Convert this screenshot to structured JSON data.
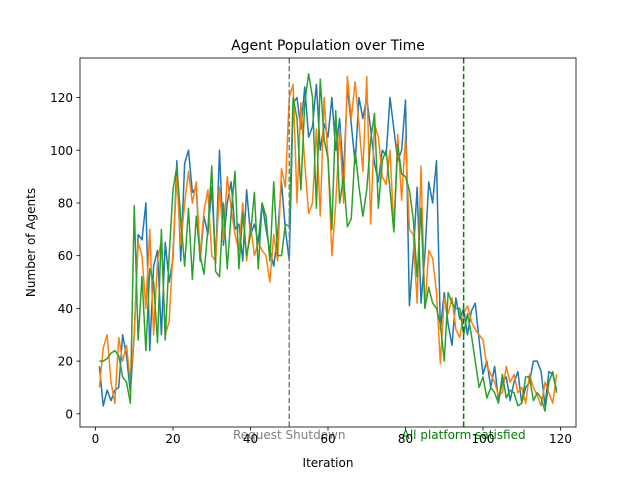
{
  "chart_data": {
    "type": "line",
    "title": "Agent Population over Time",
    "xlabel": "Iteration",
    "ylabel": "Number of Agents",
    "xlim": [
      -4,
      124
    ],
    "ylim": [
      -5,
      135
    ],
    "x_ticks": [
      0,
      20,
      40,
      60,
      80,
      100,
      120
    ],
    "y_ticks": [
      0,
      20,
      40,
      60,
      80,
      100,
      120
    ],
    "grid": false,
    "legend": "none",
    "x": [
      1,
      2,
      3,
      4,
      5,
      6,
      7,
      8,
      9,
      10,
      11,
      12,
      13,
      14,
      15,
      16,
      17,
      18,
      19,
      20,
      21,
      22,
      23,
      24,
      25,
      26,
      27,
      28,
      29,
      30,
      31,
      32,
      33,
      34,
      35,
      36,
      37,
      38,
      39,
      40,
      41,
      42,
      43,
      44,
      45,
      46,
      47,
      48,
      49,
      50,
      51,
      52,
      53,
      54,
      55,
      56,
      57,
      58,
      59,
      60,
      61,
      62,
      63,
      64,
      65,
      66,
      67,
      68,
      69,
      70,
      71,
      72,
      73,
      74,
      75,
      76,
      77,
      78,
      79,
      80,
      81,
      82,
      83,
      84,
      85,
      86,
      87,
      88,
      89,
      90,
      91,
      92,
      93,
      94,
      95,
      96,
      97,
      98,
      99,
      100,
      101,
      102,
      103,
      104,
      105,
      106,
      107,
      108,
      109,
      110,
      111,
      112,
      113,
      114,
      115,
      116,
      117,
      118,
      119
    ],
    "series": [
      {
        "color": "#1f77b4",
        "values": [
          18,
          3,
          9,
          5,
          9,
          10,
          30,
          22,
          8,
          30,
          68,
          66,
          80,
          24,
          56,
          62,
          30,
          65,
          50,
          59,
          96,
          58,
          95,
          100,
          84,
          86,
          58,
          75,
          68,
          86,
          57,
          100,
          64,
          80,
          88,
          70,
          72,
          58,
          85,
          68,
          72,
          65,
          80,
          70,
          62,
          56,
          68,
          88,
          70,
          58,
          118,
          120,
          108,
          124,
          105,
          109,
          125,
          100,
          110,
          105,
          120,
          100,
          112,
          90,
          124,
          110,
          95,
          120,
          112,
          120,
          108,
          95,
          88,
          100,
          98,
          120,
          108,
          96,
          100,
          119,
          41,
          60,
          86,
          42,
          60,
          88,
          80,
          96,
          32,
          46,
          34,
          26,
          44,
          36,
          40,
          30,
          39,
          42,
          28,
          15,
          20,
          10,
          18,
          5,
          12,
          14,
          5,
          12,
          16,
          4,
          10,
          12,
          20,
          20,
          16,
          3,
          16,
          15,
          9
        ]
      },
      {
        "color": "#ff7f0e",
        "values": [
          10,
          25,
          30,
          12,
          4,
          29,
          20,
          26,
          12,
          30,
          65,
          60,
          40,
          70,
          30,
          58,
          66,
          30,
          35,
          62,
          90,
          64,
          80,
          92,
          80,
          88,
          60,
          77,
          85,
          60,
          58,
          86,
          66,
          90,
          78,
          68,
          62,
          80,
          58,
          72,
          60,
          65,
          62,
          60,
          50,
          68,
          58,
          93,
          86,
          120,
          125,
          80,
          118,
          95,
          76,
          80,
          108,
          75,
          120,
          97,
          60,
          80,
          108,
          80,
          128,
          112,
          126,
          110,
          92,
          128,
          72,
          110,
          105,
          90,
          87,
          100,
          70,
          106,
          81,
          105,
          70,
          68,
          42,
          94,
          40,
          62,
          59,
          46,
          19,
          44,
          38,
          44,
          32,
          29,
          38,
          41,
          35,
          32,
          30,
          28,
          18,
          15,
          12,
          7,
          8,
          18,
          12,
          15,
          8,
          10,
          4,
          15,
          10,
          7,
          3,
          12,
          8,
          4,
          15
        ]
      },
      {
        "color": "#2ca02c",
        "values": [
          20,
          20,
          21,
          23,
          24,
          22,
          14,
          12,
          4,
          79,
          28,
          52,
          24,
          55,
          50,
          27,
          70,
          28,
          60,
          85,
          94,
          74,
          56,
          78,
          51,
          75,
          60,
          53,
          70,
          94,
          54,
          52,
          80,
          55,
          76,
          92,
          55,
          76,
          60,
          68,
          84,
          55,
          80,
          75,
          58,
          88,
          60,
          60,
          72,
          71,
          120,
          112,
          85,
          118,
          129,
          120,
          78,
          127,
          104,
          97,
          70,
          115,
          80,
          90,
          71,
          74,
          100,
          86,
          75,
          85,
          104,
          114,
          78,
          96,
          100,
          85,
          69,
          102,
          91,
          90,
          85,
          74,
          52,
          78,
          40,
          48,
          42,
          40,
          34,
          20,
          46,
          42,
          40,
          40,
          30,
          38,
          30,
          20,
          10,
          14,
          6,
          10,
          8,
          4,
          15,
          6,
          9,
          8,
          3,
          4,
          14,
          14,
          5,
          8,
          6,
          1,
          12,
          16,
          8
        ]
      }
    ],
    "annotations": [
      {
        "x": 50,
        "color": "#808080",
        "label": "Request Shutdown"
      },
      {
        "x": 95,
        "color": "#008000",
        "label": "All platform satisfied"
      }
    ]
  }
}
